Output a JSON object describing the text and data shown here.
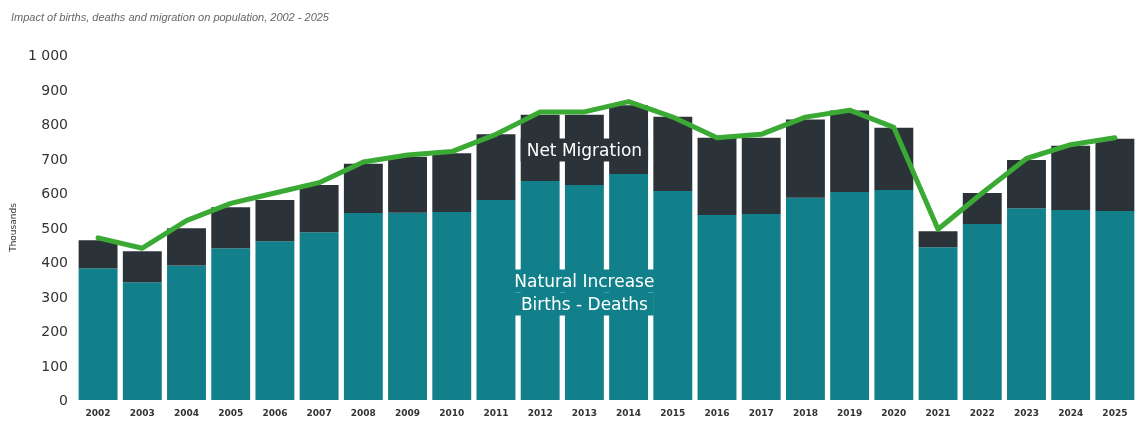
{
  "chart_data": {
    "type": "bar",
    "title": "Impact of births, deaths and migration on population, 2002 - 2025",
    "ylabel": "Thousands",
    "categories": [
      "2002",
      "2003",
      "2004",
      "2005",
      "2006",
      "2007",
      "2008",
      "2009",
      "2010",
      "2011",
      "2012",
      "2013",
      "2014",
      "2015",
      "2016",
      "2017",
      "2018",
      "2019",
      "2020",
      "2021",
      "2022",
      "2023",
      "2024",
      "2025"
    ],
    "stacked": true,
    "grid": false,
    "legend": false,
    "ylim": [
      0,
      1000
    ],
    "yticks": [
      0,
      100,
      200,
      300,
      400,
      500,
      600,
      700,
      800,
      900,
      {
        "value": 1000,
        "label": "1 000"
      }
    ],
    "series": [
      {
        "name": "Natural Increase Births - Deaths",
        "color": "#12808a",
        "values": [
          382,
          341,
          390,
          440,
          460,
          486,
          542,
          543,
          545,
          580,
          635,
          623,
          655,
          606,
          536,
          539,
          586,
          603,
          609,
          443,
          510,
          556,
          551,
          548
        ]
      },
      {
        "name": "Net Migration",
        "color": "#2b3238",
        "values": [
          81,
          90,
          108,
          119,
          120,
          137,
          143,
          162,
          170,
          190,
          192,
          204,
          199,
          215,
          224,
          221,
          227,
          236,
          180,
          46,
          90,
          140,
          186,
          209
        ]
      },
      {
        "type": "line",
        "color": "#3aaa35",
        "line_style": "solid",
        "marker": "none",
        "values": [
          470,
          440,
          520,
          570,
          600,
          630,
          690,
          710,
          720,
          770,
          835,
          835,
          865,
          820,
          760,
          770,
          820,
          840,
          790,
          495,
          600,
          700,
          740,
          760
        ]
      }
    ]
  }
}
